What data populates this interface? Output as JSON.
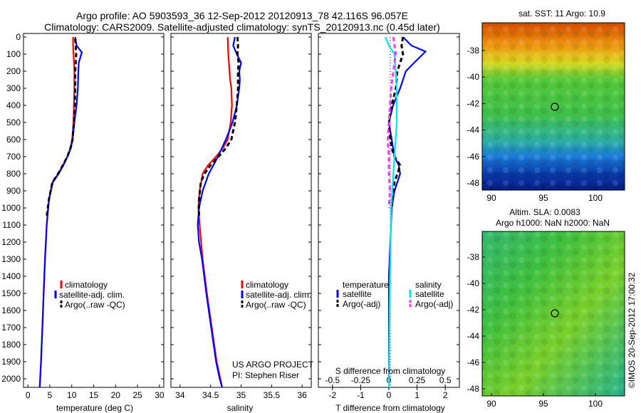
{
  "header": {
    "line1": "Argo profile: AO 5903593_36 12-Sep-2012 20120913_78 42.116S 96.057E",
    "line2": "Climatology: CARS2009. Satellite-adjusted climatology: synTS_20120913.nc (0.45d later)"
  },
  "colors": {
    "climatology": "#ff0000",
    "satellite": "#0000ff",
    "argo": "#000000",
    "sat_salinity": "#00e5ee",
    "argo_salinity": "#ff33ff"
  },
  "depth_ticks": [
    "0",
    "100",
    "200",
    "300",
    "400",
    "500",
    "600",
    "700",
    "800",
    "900",
    "1000",
    "1100",
    "1200",
    "1300",
    "1400",
    "1500",
    "1600",
    "1700",
    "1800",
    "1900",
    "2000"
  ],
  "temp_panel": {
    "xlabel": "temperature (deg C)",
    "xticks": [
      "0",
      "5",
      "10",
      "15",
      "20",
      "25",
      "30"
    ],
    "legend": [
      "climatology",
      "satellite-adj. clim.",
      "Argo(..raw -QC)"
    ]
  },
  "sal_panel": {
    "xlabel": "salinity",
    "xticks": [
      "34",
      "34.5",
      "35",
      "35.5",
      "36"
    ],
    "legend": [
      "climatology",
      "satellite-adj. clim.",
      "Argo(..raw -QC)"
    ],
    "project_line1": "US ARGO PROJECT",
    "project_line2": "PI: Stephen Riser"
  },
  "diff_panel": {
    "xlabel": "T difference from climatology",
    "top_label": "S difference from climatology",
    "xticks": [
      "-2",
      "-1",
      "0",
      "1",
      "2"
    ],
    "top_ticks": [
      "-0.5",
      "-0.25",
      "0",
      "0.25",
      "0.5"
    ],
    "legend_temp_title": "temperature",
    "legend_sal_title": "salinity",
    "legend_temp": [
      "satellite",
      "Argo(-adj)"
    ],
    "legend_sal": [
      "satellite",
      "Argo(-adj)"
    ]
  },
  "sst_map": {
    "title": "sat. SST: 11 Argo: 10.9",
    "yticks": [
      "-38",
      "-40",
      "-42",
      "-44",
      "-46",
      "-48"
    ],
    "xticks": [
      "90",
      "95",
      "100"
    ]
  },
  "sla_map": {
    "title1": "Altim. SLA: 0.0083",
    "title2": "Argo h1000: NaN h2000: NaN",
    "yticks": [
      "-38",
      "-40",
      "-42",
      "-44",
      "-46",
      "-48"
    ],
    "xticks": [
      "90",
      "95",
      "100"
    ]
  },
  "side_stamp": "©IMOS 20-Sep-2012 17:00:32",
  "chart_data": [
    {
      "type": "line",
      "xlabel": "temperature (deg C)",
      "ylabel": "",
      "xlim": [
        -1,
        31
      ],
      "ylim": [
        2050,
        0
      ],
      "y_reversed": true,
      "grid": false,
      "legend": "center-left",
      "series": [
        {
          "name": "climatology",
          "color": "#ff0000",
          "x": [
            10.3,
            10.3,
            10.4,
            10.5,
            10.6,
            10.6,
            10.5,
            10.4,
            10.1,
            9.7,
            9.0,
            8.0,
            6.9,
            5.6,
            4.8,
            4.3,
            3.9,
            3.6,
            3.3,
            3.0,
            2.8,
            2.7
          ],
          "y": [
            0,
            50,
            100,
            150,
            200,
            300,
            400,
            500,
            600,
            650,
            700,
            750,
            800,
            850,
            950,
            1100,
            1300,
            1500,
            1700,
            1900,
            2000,
            2050
          ]
        },
        {
          "name": "satellite-adj. clim.",
          "color": "#0000ff",
          "x": [
            10.8,
            11.1,
            12.3,
            11.6,
            11.5,
            11.4,
            11.1,
            10.6,
            10.2,
            9.8,
            9.0,
            8.1,
            7.0,
            5.7,
            4.8,
            4.3,
            3.9,
            3.6,
            3.3,
            3.0,
            2.8,
            2.7
          ],
          "y": [
            0,
            50,
            90,
            150,
            200,
            300,
            400,
            500,
            600,
            650,
            700,
            750,
            800,
            850,
            950,
            1100,
            1300,
            1500,
            1700,
            1900,
            2000,
            2050
          ]
        },
        {
          "name": "Argo(..raw -QC)",
          "color": "#000000",
          "x": [
            10.8,
            10.9,
            11.0,
            10.9,
            10.8,
            10.8,
            10.7,
            10.5,
            10.2,
            9.7,
            9.0,
            8.0,
            6.9,
            5.6,
            4.8,
            4.3
          ],
          "y": [
            10,
            50,
            100,
            150,
            200,
            300,
            400,
            500,
            600,
            650,
            700,
            750,
            800,
            850,
            950,
            1050
          ]
        }
      ]
    },
    {
      "type": "line",
      "xlabel": "salinity",
      "ylabel": "",
      "xlim": [
        33.85,
        36.15
      ],
      "ylim": [
        2050,
        0
      ],
      "y_reversed": true,
      "grid": false,
      "legend": "center-left",
      "series": [
        {
          "name": "climatology",
          "color": "#ff0000",
          "x": [
            34.78,
            34.79,
            34.8,
            34.81,
            34.82,
            34.84,
            34.85,
            34.83,
            34.78,
            34.7,
            34.59,
            34.46,
            34.37,
            34.32,
            34.3,
            34.32,
            34.37,
            34.44,
            34.52,
            34.6,
            34.66,
            34.69
          ],
          "y": [
            0,
            100,
            150,
            200,
            250,
            300,
            400,
            500,
            600,
            650,
            700,
            750,
            800,
            900,
            1000,
            1100,
            1300,
            1500,
            1700,
            1900,
            2000,
            2050
          ]
        },
        {
          "name": "satellite-adj. clim.",
          "color": "#0000ff",
          "x": [
            34.9,
            34.87,
            34.93,
            35.0,
            34.97,
            34.98,
            34.97,
            34.93,
            34.86,
            34.75,
            34.62,
            34.47,
            34.37,
            34.31,
            34.29,
            34.31,
            34.36,
            34.43,
            34.51,
            34.59,
            34.65,
            34.69
          ],
          "y": [
            0,
            50,
            100,
            150,
            200,
            250,
            300,
            400,
            500,
            600,
            700,
            800,
            900,
            1000,
            1100,
            1200,
            1300,
            1500,
            1700,
            1900,
            2000,
            2050
          ]
        },
        {
          "name": "Argo(..raw -QC)",
          "color": "#000000",
          "x": [
            34.94,
            34.95,
            34.94,
            34.96,
            34.95,
            34.95,
            34.93,
            34.9,
            34.84,
            34.75,
            34.63,
            34.5,
            34.4,
            34.34,
            34.31,
            34.31
          ],
          "y": [
            0,
            50,
            100,
            150,
            200,
            300,
            400,
            500,
            600,
            650,
            700,
            750,
            800,
            850,
            950,
            1050
          ]
        }
      ]
    },
    {
      "type": "line",
      "xlabel": "T difference from climatology",
      "x2label": "S difference from climatology",
      "xlim": [
        -2.5,
        2.5
      ],
      "x2lim": [
        -0.625,
        0.625
      ],
      "ylim": [
        2050,
        0
      ],
      "y_reversed": true,
      "grid": false,
      "legend": "center-left",
      "series": [
        {
          "name": "temperature satellite",
          "color": "#0000ff",
          "axis": "T",
          "x": [
            0.5,
            0.8,
            1.3,
            0.9,
            0.6,
            0.4,
            0.15,
            0.0,
            0.1,
            0.2,
            0.35,
            0.4,
            0.3,
            0.2,
            0.1,
            0.05,
            0.0,
            0.0,
            0.0,
            0.0
          ],
          "y": [
            0,
            50,
            85,
            150,
            200,
            300,
            400,
            500,
            600,
            700,
            750,
            800,
            850,
            900,
            1000,
            1200,
            1400,
            1600,
            1800,
            2000
          ]
        },
        {
          "name": "temperature Argo(-adj)",
          "color": "#000000",
          "axis": "T",
          "x": [
            0.5,
            0.45,
            0.5,
            0.3,
            0.25,
            0.1,
            0.0,
            0.05,
            0.1,
            0.2,
            0.4,
            0.3,
            0.2,
            0.1
          ],
          "y": [
            0,
            50,
            100,
            200,
            300,
            400,
            500,
            600,
            650,
            700,
            750,
            800,
            850,
            1000
          ]
        },
        {
          "name": "salinity satellite",
          "color": "#00e5ee",
          "axis": "S",
          "x": [
            -0.03,
            0.0,
            0.05,
            0.07,
            0.07,
            0.06,
            0.05,
            0.04,
            0.03,
            0.02,
            0.015,
            0.01,
            0.005,
            0.0
          ],
          "y": [
            0,
            50,
            100,
            300,
            500,
            600,
            700,
            800,
            900,
            1000,
            1200,
            1400,
            1700,
            2050
          ]
        },
        {
          "name": "salinity Argo(-adj)",
          "color": "#ff33ff",
          "axis": "S",
          "x": [
            0.04,
            0.05,
            0.06,
            0.05,
            0.04,
            0.02,
            0.01,
            0.0,
            -0.01,
            0.0,
            0.0,
            0.01,
            0.0
          ],
          "y": [
            0,
            50,
            100,
            150,
            200,
            300,
            400,
            500,
            600,
            700,
            800,
            900,
            1000
          ]
        }
      ]
    }
  ]
}
